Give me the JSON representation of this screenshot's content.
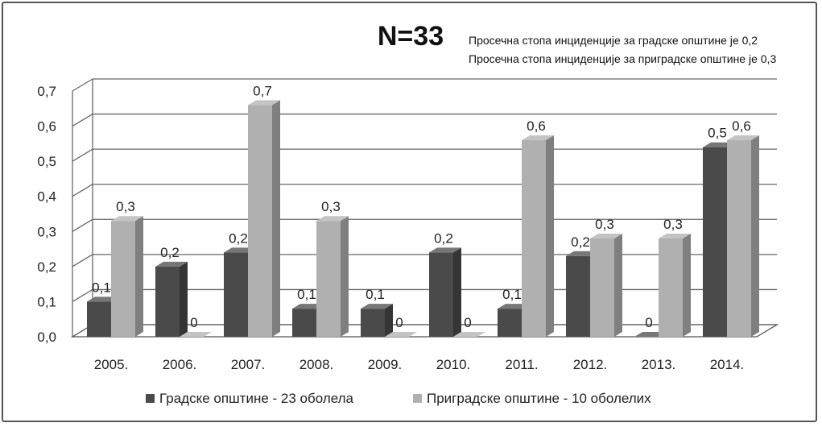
{
  "chart_data": {
    "type": "bar",
    "title": "N=33",
    "subtitle_lines": [
      "Просечна стопа инциденције за градске општине је 0,2",
      "Просечна стопа инциденције за приградске општине је 0,3"
    ],
    "categories": [
      "2005.",
      "2006.",
      "2007.",
      "2008.",
      "2009.",
      "2010.",
      "2011.",
      "2012.",
      "2013.",
      "2014."
    ],
    "series": [
      {
        "name": "Градске општине - 23 оболела",
        "values": [
          0.1,
          0.2,
          0.24,
          0.08,
          0.08,
          0.24,
          0.08,
          0.23,
          0,
          0.54
        ],
        "labels": [
          "0,1",
          "0,2",
          "0,2",
          "0,1",
          "0,1",
          "0,2",
          "0,1",
          "0,2",
          "0",
          "0,5"
        ],
        "color": "#4a4a4a"
      },
      {
        "name": "Приградске општине - 10 оболелих",
        "values": [
          0.33,
          0,
          0.66,
          0.33,
          0,
          0,
          0.56,
          0.28,
          0.28,
          0.56
        ],
        "labels": [
          "0,3",
          "0",
          "0,7",
          "0,3",
          "0",
          "0",
          "0,6",
          "0,3",
          "0,3",
          "0,6"
        ],
        "color": "#b0b0b0"
      }
    ],
    "ylim": [
      0,
      0.7
    ],
    "yticks": [
      "0,0",
      "0,1",
      "0,2",
      "0,3",
      "0,4",
      "0,5",
      "0,6",
      "0,7"
    ],
    "grid": true,
    "legend_position": "bottom"
  }
}
